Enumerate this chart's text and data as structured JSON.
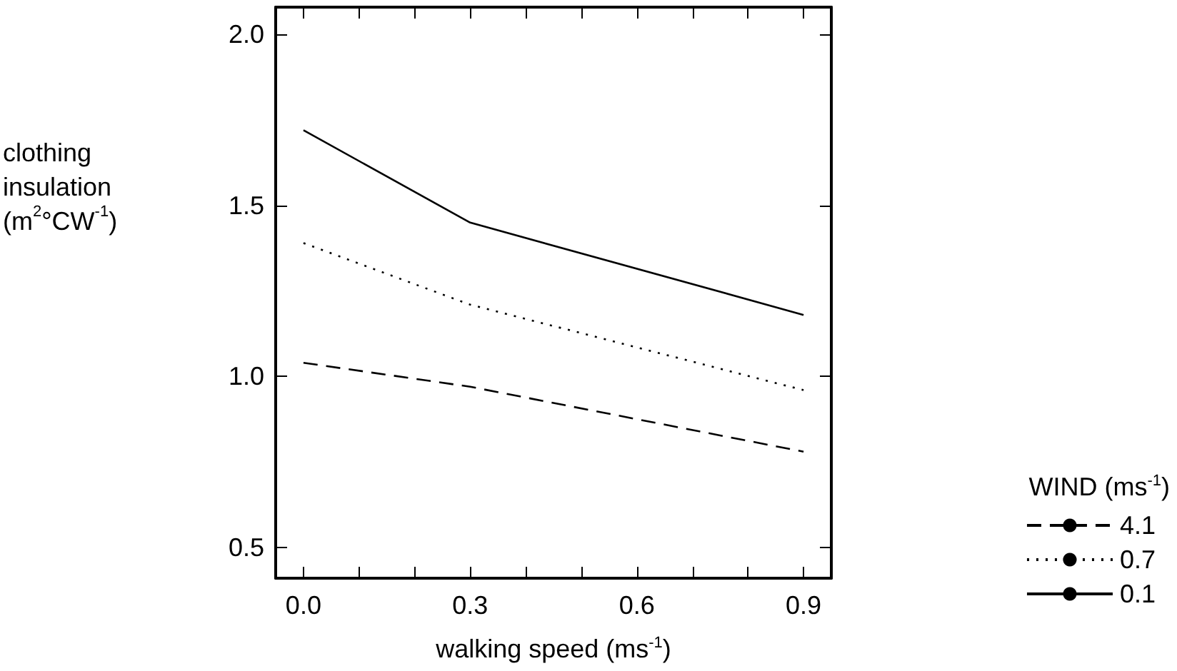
{
  "chart_data": {
    "type": "line",
    "xlabel": "walking speed (ms$^{-1}$)",
    "ylabel": "clothing insulation (m$^{2}$°CW$^{-1}$)",
    "legend_title": "WIND (ms$^{-1}$)",
    "x": [
      0.0,
      0.3,
      0.9
    ],
    "series": [
      {
        "name": "4.1",
        "color": "#000000",
        "line_style": "dashed",
        "values": [
          1.04,
          0.97,
          0.78
        ]
      },
      {
        "name": "0.7",
        "color": "#000000",
        "line_style": "dotted",
        "values": [
          1.39,
          1.21,
          0.96
        ]
      },
      {
        "name": "0.1",
        "color": "#000000",
        "line_style": "solid",
        "values": [
          1.72,
          1.45,
          1.18
        ]
      }
    ],
    "xlim": [
      -0.05,
      0.95
    ],
    "ylim": [
      0.41,
      2.08
    ],
    "xticks": [
      {
        "value": 0.0,
        "label": "0.0"
      },
      {
        "value": 0.1,
        "label": null
      },
      {
        "value": 0.2,
        "label": null
      },
      {
        "value": 0.3,
        "label": "0.3"
      },
      {
        "value": 0.4,
        "label": null
      },
      {
        "value": 0.5,
        "label": null
      },
      {
        "value": 0.6,
        "label": "0.6"
      },
      {
        "value": 0.7,
        "label": null
      },
      {
        "value": 0.8,
        "label": null
      },
      {
        "value": 0.9,
        "label": "0.9"
      }
    ],
    "yticks": [
      {
        "value": 0.5,
        "label": "0.5"
      },
      {
        "value": 1.0,
        "label": "1.0"
      },
      {
        "value": 1.5,
        "label": "1.5"
      },
      {
        "value": 2.0,
        "label": "2.0"
      }
    ],
    "grid": false,
    "legend": "bottom right",
    "marker": "none"
  }
}
